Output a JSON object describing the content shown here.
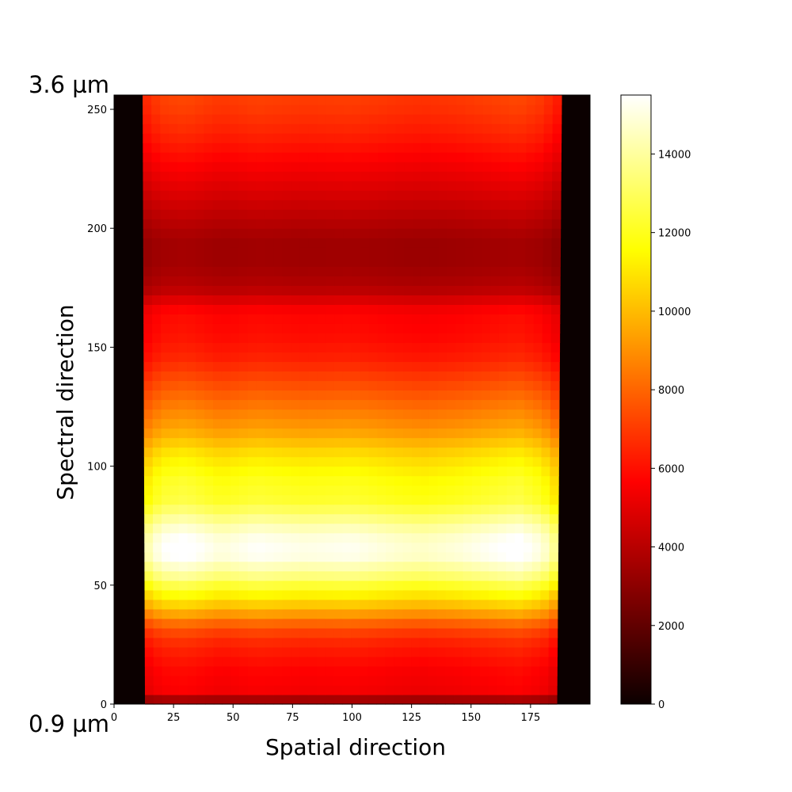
{
  "chart_data": {
    "type": "heatmap",
    "colormap": "hot",
    "xlabel": "Spatial direction",
    "ylabel": "Spectral direction",
    "corner_labels": {
      "top": "3.6 µm",
      "bottom": "0.9 µm"
    },
    "xlim": [
      0,
      200
    ],
    "ylim": [
      0,
      256
    ],
    "x_ticks": [
      0,
      25,
      50,
      75,
      100,
      125,
      150,
      175
    ],
    "y_ticks": [
      0,
      50,
      100,
      150,
      200,
      250
    ],
    "colorbar": {
      "min": 0,
      "max": 15500,
      "ticks": [
        0,
        2000,
        4000,
        6000,
        8000,
        10000,
        12000,
        14000
      ]
    },
    "illuminated_region": {
      "x_start_bottom": 13,
      "x_end_bottom": 186,
      "x_start_top": 12,
      "x_end_top": 188
    },
    "spectral_profile": {
      "y": [
        0,
        5,
        15,
        25,
        32,
        40,
        48,
        55,
        62,
        68,
        75,
        85,
        95,
        105,
        115,
        125,
        135,
        145,
        155,
        165,
        175,
        185,
        195,
        210,
        225,
        240,
        250,
        256
      ],
      "intensity": [
        2500,
        5500,
        5800,
        6500,
        7500,
        10000,
        12000,
        14000,
        15300,
        15500,
        14500,
        12500,
        12000,
        11000,
        9500,
        8500,
        7500,
        6500,
        6000,
        5800,
        4000,
        3500,
        3500,
        4500,
        5500,
        6500,
        7000,
        7200
      ]
    },
    "spatial_profile": {
      "x": [
        12,
        20,
        30,
        45,
        60,
        80,
        100,
        120,
        130,
        145,
        160,
        170,
        180,
        188
      ],
      "factor": [
        0.9,
        1.0,
        1.02,
        0.97,
        1.0,
        0.98,
        0.99,
        0.96,
        0.95,
        0.97,
        1.0,
        1.02,
        0.97,
        0.85
      ]
    }
  }
}
